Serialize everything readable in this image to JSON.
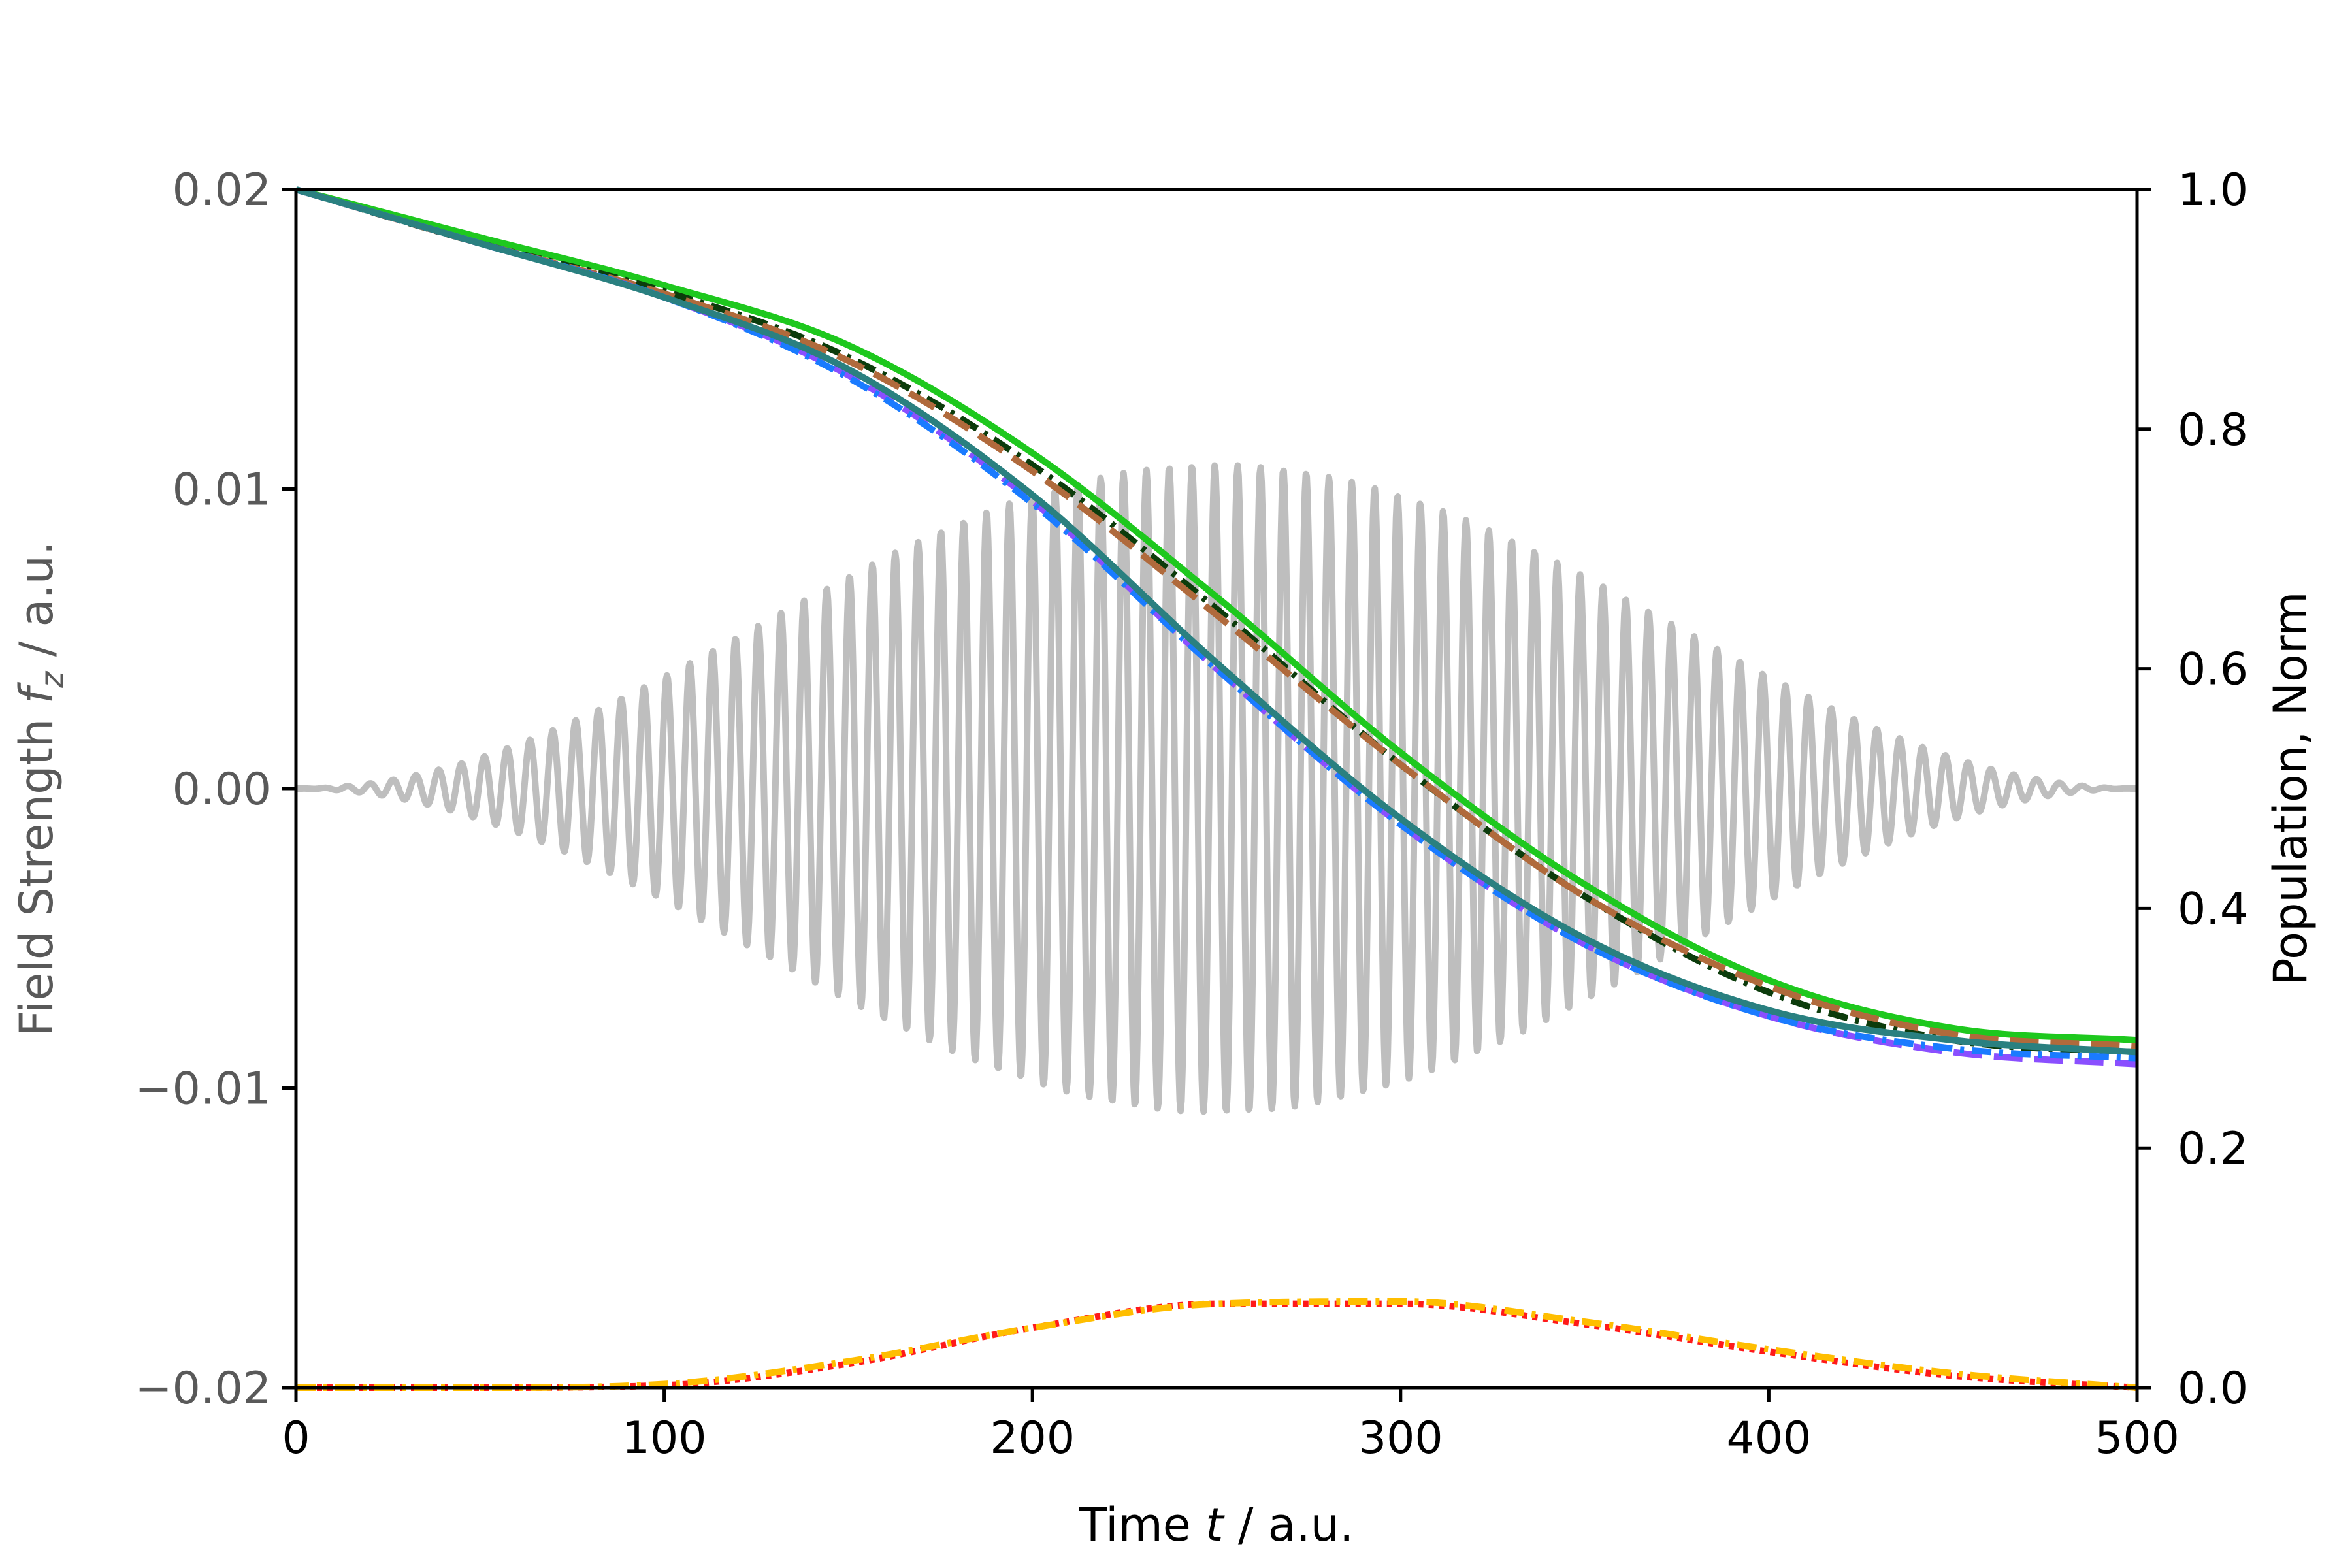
{
  "chart_data": {
    "type": "line",
    "xlabel": {
      "pre": "Time ",
      "var": "t",
      "post": " / a.u."
    },
    "ylabel_left": {
      "pre": "Field Strength ",
      "var": "f",
      "sub": "z",
      "post": " / a.u."
    },
    "ylabel_right": "Population, Norm",
    "xlim": [
      0,
      500
    ],
    "ylim_left": [
      -0.02,
      0.02
    ],
    "ylim_right": [
      0.0,
      1.0
    ],
    "grid": false,
    "legend": "none",
    "x_ticks": [
      "0",
      "100",
      "200",
      "300",
      "400",
      "500"
    ],
    "left_ticks": [
      "0.02",
      "0.01",
      "0.00",
      "−0.01",
      "−0.02"
    ],
    "right_ticks": [
      "1.0",
      "0.8",
      "0.6",
      "0.4",
      "0.2",
      "0.0"
    ],
    "field": {
      "axis": "left",
      "color": "#bebebe",
      "amplitude": 0.0108,
      "center": 250,
      "halfwidth": 250,
      "period": 6.2,
      "envelope": "sin^2"
    },
    "series": [
      {
        "axis": "right",
        "color": "#1ec81e",
        "dash": "solid",
        "x": [
          0,
          50,
          100,
          150,
          200,
          250,
          300,
          350,
          400,
          450,
          500
        ],
        "y": [
          1.0,
          0.96,
          0.92,
          0.87,
          0.78,
          0.66,
          0.53,
          0.42,
          0.34,
          0.3,
          0.29
        ]
      },
      {
        "axis": "right",
        "color": "#0c3c0c",
        "dash": "dashdot",
        "x": [
          0,
          50,
          100,
          150,
          200,
          250,
          300,
          350,
          400,
          450,
          500
        ],
        "y": [
          1.0,
          0.955,
          0.915,
          0.86,
          0.77,
          0.65,
          0.52,
          0.41,
          0.33,
          0.29,
          0.28
        ]
      },
      {
        "axis": "right",
        "color": "#b06a3c",
        "dash": "dash",
        "x": [
          0,
          50,
          100,
          150,
          200,
          250,
          300,
          350,
          400,
          450,
          500
        ],
        "y": [
          1.0,
          0.955,
          0.913,
          0.857,
          0.765,
          0.645,
          0.52,
          0.41,
          0.335,
          0.295,
          0.285
        ]
      },
      {
        "axis": "right",
        "color": "#8a4fff",
        "dash": "dash",
        "x": [
          0,
          50,
          100,
          150,
          200,
          250,
          300,
          350,
          400,
          450,
          500
        ],
        "y": [
          1.0,
          0.955,
          0.91,
          0.845,
          0.74,
          0.6,
          0.47,
          0.37,
          0.31,
          0.28,
          0.27
        ]
      },
      {
        "axis": "right",
        "color": "#1a7bff",
        "dash": "dashdot",
        "x": [
          0,
          50,
          100,
          150,
          200,
          250,
          300,
          350,
          400,
          450,
          500
        ],
        "y": [
          1.0,
          0.955,
          0.91,
          0.843,
          0.738,
          0.6,
          0.47,
          0.37,
          0.31,
          0.283,
          0.275
        ]
      },
      {
        "axis": "right",
        "color": "#2a8080",
        "dash": "solid",
        "x": [
          0,
          50,
          100,
          150,
          200,
          250,
          300,
          350,
          400,
          450,
          500
        ],
        "y": [
          1.0,
          0.955,
          0.91,
          0.85,
          0.745,
          0.605,
          0.475,
          0.375,
          0.315,
          0.29,
          0.28
        ]
      },
      {
        "axis": "right",
        "color": "#ff1a1a",
        "dash": "dotted",
        "x": [
          0,
          50,
          100,
          150,
          200,
          250,
          300,
          350,
          400,
          450,
          500
        ],
        "y": [
          0.0,
          0.0,
          0.002,
          0.02,
          0.05,
          0.07,
          0.07,
          0.053,
          0.03,
          0.01,
          0.0
        ]
      },
      {
        "axis": "right",
        "color": "#ffbe00",
        "dash": "dashdot",
        "x": [
          0,
          50,
          100,
          150,
          200,
          250,
          300,
          350,
          400,
          450,
          500
        ],
        "y": [
          0.0,
          0.0,
          0.003,
          0.022,
          0.05,
          0.07,
          0.072,
          0.055,
          0.032,
          0.012,
          0.0
        ]
      }
    ]
  }
}
